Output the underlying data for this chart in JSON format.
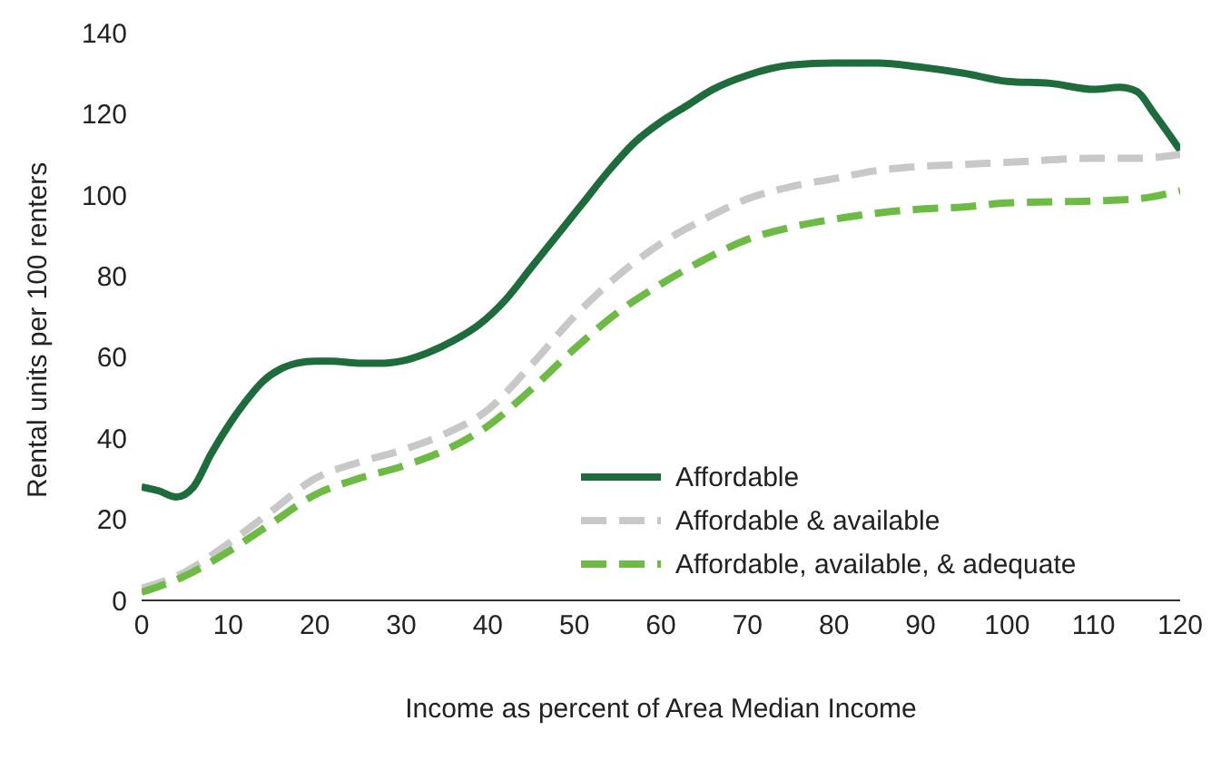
{
  "chart_data": {
    "type": "line",
    "xlabel": "Income as percent of Area Median Income",
    "ylabel": "Rental units per 100 renters",
    "x": [
      0,
      2,
      4,
      6,
      8,
      10,
      12,
      14,
      16,
      18,
      20,
      22,
      25,
      28,
      30,
      33,
      36,
      39,
      42,
      45,
      48,
      51,
      54,
      57,
      60,
      63,
      66,
      70,
      75,
      80,
      85,
      90,
      95,
      100,
      105,
      110,
      113,
      115,
      117,
      120
    ],
    "series": [
      {
        "name": "Affordable",
        "color": "#1e6b3c",
        "line_style": "solid",
        "values": [
          28,
          27,
          25.5,
          28,
          36,
          43,
          49,
          54,
          57,
          58.5,
          59,
          59,
          58.5,
          58.5,
          59,
          61,
          64,
          68,
          74,
          82,
          90,
          98,
          106,
          113,
          118,
          122,
          126,
          129.5,
          132,
          132.5,
          132.5,
          131.5,
          130,
          128,
          127.5,
          126,
          126.5,
          125.5,
          120,
          111
        ]
      },
      {
        "name": "Affordable & available",
        "color": "#c8c8c8",
        "line_style": "dashed",
        "x": [
          0,
          5,
          10,
          15,
          20,
          25,
          30,
          35,
          40,
          45,
          50,
          55,
          60,
          65,
          70,
          75,
          80,
          85,
          90,
          95,
          100,
          110,
          115,
          120
        ],
        "values": [
          3,
          7,
          14,
          22,
          30,
          34,
          37,
          41,
          47,
          58,
          70,
          80,
          88,
          94,
          99,
          102,
          104,
          106,
          107,
          107.5,
          108,
          109,
          109,
          110
        ]
      },
      {
        "name": "Affordable, available, & adequate",
        "color": "#6dbb45",
        "line_style": "dashed",
        "x": [
          0,
          5,
          10,
          15,
          20,
          25,
          30,
          35,
          40,
          45,
          50,
          55,
          60,
          65,
          70,
          75,
          80,
          85,
          90,
          95,
          100,
          110,
          115,
          120
        ],
        "values": [
          2,
          6,
          12,
          19,
          26,
          30,
          33,
          37,
          43,
          52,
          62,
          71,
          78,
          84,
          89,
          92,
          94,
          95.5,
          96.5,
          97,
          98,
          98.5,
          99,
          101
        ]
      }
    ],
    "xlim": [
      0,
      120
    ],
    "xticks": [
      0,
      10,
      20,
      30,
      40,
      50,
      60,
      70,
      80,
      90,
      100,
      110,
      120
    ],
    "ylim": [
      0,
      140
    ],
    "yticks": [
      0,
      20,
      40,
      60,
      80,
      100,
      120,
      140
    ],
    "grid": false,
    "legend": "bottom right",
    "marker": "none"
  }
}
